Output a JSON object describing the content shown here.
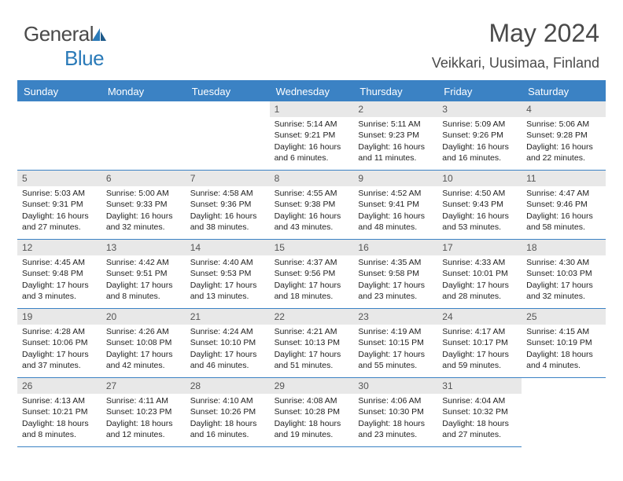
{
  "brand": {
    "part1": "General",
    "part2": "Blue"
  },
  "title": "May 2024",
  "location": "Veikkari, Uusimaa, Finland",
  "colors": {
    "header_bg": "#3b82c4",
    "header_text": "#ffffff",
    "daynum_bg": "#e8e8e8",
    "daynum_text": "#555555",
    "body_text": "#222222",
    "brand_gray": "#4a4a4a",
    "brand_blue": "#2a7ab8"
  },
  "weekdays": [
    "Sunday",
    "Monday",
    "Tuesday",
    "Wednesday",
    "Thursday",
    "Friday",
    "Saturday"
  ],
  "leading_blanks": 3,
  "days": [
    {
      "n": "1",
      "sunrise": "5:14 AM",
      "sunset": "9:21 PM",
      "daylight": "16 hours and 6 minutes."
    },
    {
      "n": "2",
      "sunrise": "5:11 AM",
      "sunset": "9:23 PM",
      "daylight": "16 hours and 11 minutes."
    },
    {
      "n": "3",
      "sunrise": "5:09 AM",
      "sunset": "9:26 PM",
      "daylight": "16 hours and 16 minutes."
    },
    {
      "n": "4",
      "sunrise": "5:06 AM",
      "sunset": "9:28 PM",
      "daylight": "16 hours and 22 minutes."
    },
    {
      "n": "5",
      "sunrise": "5:03 AM",
      "sunset": "9:31 PM",
      "daylight": "16 hours and 27 minutes."
    },
    {
      "n": "6",
      "sunrise": "5:00 AM",
      "sunset": "9:33 PM",
      "daylight": "16 hours and 32 minutes."
    },
    {
      "n": "7",
      "sunrise": "4:58 AM",
      "sunset": "9:36 PM",
      "daylight": "16 hours and 38 minutes."
    },
    {
      "n": "8",
      "sunrise": "4:55 AM",
      "sunset": "9:38 PM",
      "daylight": "16 hours and 43 minutes."
    },
    {
      "n": "9",
      "sunrise": "4:52 AM",
      "sunset": "9:41 PM",
      "daylight": "16 hours and 48 minutes."
    },
    {
      "n": "10",
      "sunrise": "4:50 AM",
      "sunset": "9:43 PM",
      "daylight": "16 hours and 53 minutes."
    },
    {
      "n": "11",
      "sunrise": "4:47 AM",
      "sunset": "9:46 PM",
      "daylight": "16 hours and 58 minutes."
    },
    {
      "n": "12",
      "sunrise": "4:45 AM",
      "sunset": "9:48 PM",
      "daylight": "17 hours and 3 minutes."
    },
    {
      "n": "13",
      "sunrise": "4:42 AM",
      "sunset": "9:51 PM",
      "daylight": "17 hours and 8 minutes."
    },
    {
      "n": "14",
      "sunrise": "4:40 AM",
      "sunset": "9:53 PM",
      "daylight": "17 hours and 13 minutes."
    },
    {
      "n": "15",
      "sunrise": "4:37 AM",
      "sunset": "9:56 PM",
      "daylight": "17 hours and 18 minutes."
    },
    {
      "n": "16",
      "sunrise": "4:35 AM",
      "sunset": "9:58 PM",
      "daylight": "17 hours and 23 minutes."
    },
    {
      "n": "17",
      "sunrise": "4:33 AM",
      "sunset": "10:01 PM",
      "daylight": "17 hours and 28 minutes."
    },
    {
      "n": "18",
      "sunrise": "4:30 AM",
      "sunset": "10:03 PM",
      "daylight": "17 hours and 32 minutes."
    },
    {
      "n": "19",
      "sunrise": "4:28 AM",
      "sunset": "10:06 PM",
      "daylight": "17 hours and 37 minutes."
    },
    {
      "n": "20",
      "sunrise": "4:26 AM",
      "sunset": "10:08 PM",
      "daylight": "17 hours and 42 minutes."
    },
    {
      "n": "21",
      "sunrise": "4:24 AM",
      "sunset": "10:10 PM",
      "daylight": "17 hours and 46 minutes."
    },
    {
      "n": "22",
      "sunrise": "4:21 AM",
      "sunset": "10:13 PM",
      "daylight": "17 hours and 51 minutes."
    },
    {
      "n": "23",
      "sunrise": "4:19 AM",
      "sunset": "10:15 PM",
      "daylight": "17 hours and 55 minutes."
    },
    {
      "n": "24",
      "sunrise": "4:17 AM",
      "sunset": "10:17 PM",
      "daylight": "17 hours and 59 minutes."
    },
    {
      "n": "25",
      "sunrise": "4:15 AM",
      "sunset": "10:19 PM",
      "daylight": "18 hours and 4 minutes."
    },
    {
      "n": "26",
      "sunrise": "4:13 AM",
      "sunset": "10:21 PM",
      "daylight": "18 hours and 8 minutes."
    },
    {
      "n": "27",
      "sunrise": "4:11 AM",
      "sunset": "10:23 PM",
      "daylight": "18 hours and 12 minutes."
    },
    {
      "n": "28",
      "sunrise": "4:10 AM",
      "sunset": "10:26 PM",
      "daylight": "18 hours and 16 minutes."
    },
    {
      "n": "29",
      "sunrise": "4:08 AM",
      "sunset": "10:28 PM",
      "daylight": "18 hours and 19 minutes."
    },
    {
      "n": "30",
      "sunrise": "4:06 AM",
      "sunset": "10:30 PM",
      "daylight": "18 hours and 23 minutes."
    },
    {
      "n": "31",
      "sunrise": "4:04 AM",
      "sunset": "10:32 PM",
      "daylight": "18 hours and 27 minutes."
    }
  ],
  "labels": {
    "sunrise": "Sunrise:",
    "sunset": "Sunset:",
    "daylight": "Daylight:"
  }
}
